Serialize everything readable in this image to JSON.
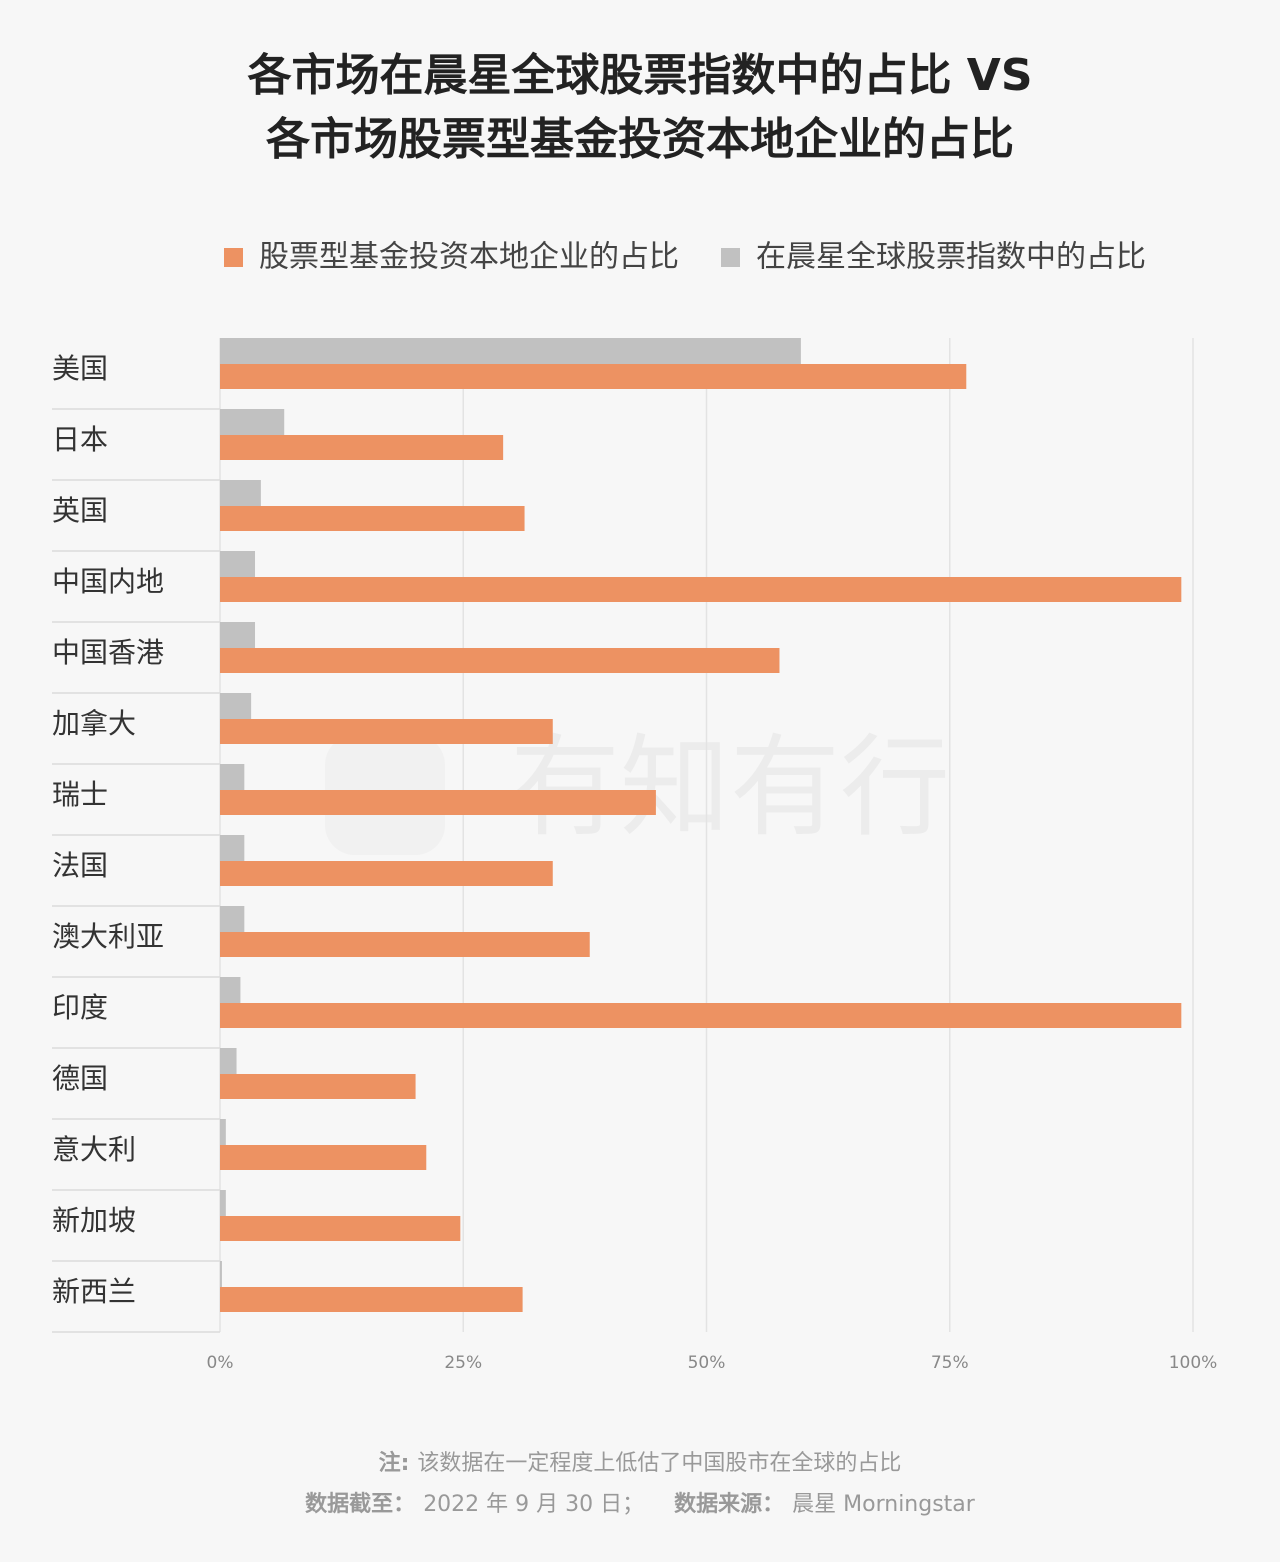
{
  "chart_data": {
    "type": "bar",
    "orientation": "horizontal",
    "title": [
      "各市场在晨星全球股票指数中的占比 VS",
      "各市场股票型基金投资本地企业的占比"
    ],
    "categories": [
      "美国",
      "日本",
      "英国",
      "中国内地",
      "中国香港",
      "加拿大",
      "瑞士",
      "法国",
      "澳大利亚",
      "印度",
      "德国",
      "意大利",
      "新加坡",
      "新西兰"
    ],
    "series": [
      {
        "name": "股票型基金投资本地企业的占比",
        "color": "#ed9262",
        "values": [
          76.7,
          29.1,
          31.3,
          98.8,
          57.5,
          34.2,
          44.8,
          34.2,
          38.0,
          98.8,
          20.1,
          21.2,
          24.7,
          31.1
        ]
      },
      {
        "name": "在晨星全球股票指数中的占比",
        "color": "#c1c1c1",
        "values": [
          59.7,
          6.6,
          4.2,
          3.6,
          3.6,
          3.2,
          2.5,
          2.5,
          2.5,
          2.1,
          1.7,
          0.6,
          0.6,
          0.2
        ]
      }
    ],
    "xlim": [
      0,
      100
    ],
    "xticks": [
      {
        "value": 0,
        "label": "0%"
      },
      {
        "value": 25,
        "label": "25%"
      },
      {
        "value": 50,
        "label": "50%"
      },
      {
        "value": 75,
        "label": "75%"
      },
      {
        "value": 100,
        "label": "100%"
      }
    ],
    "grid": true,
    "watermark": "有知有行",
    "notes": [
      [
        "注:",
        "该数据在一定程度上低估了中国股市在全球的占比"
      ],
      [
        "数据截至：",
        "2022 年 9 月 30 日；",
        "数据来源：",
        "晨星 Morningstar"
      ]
    ]
  }
}
